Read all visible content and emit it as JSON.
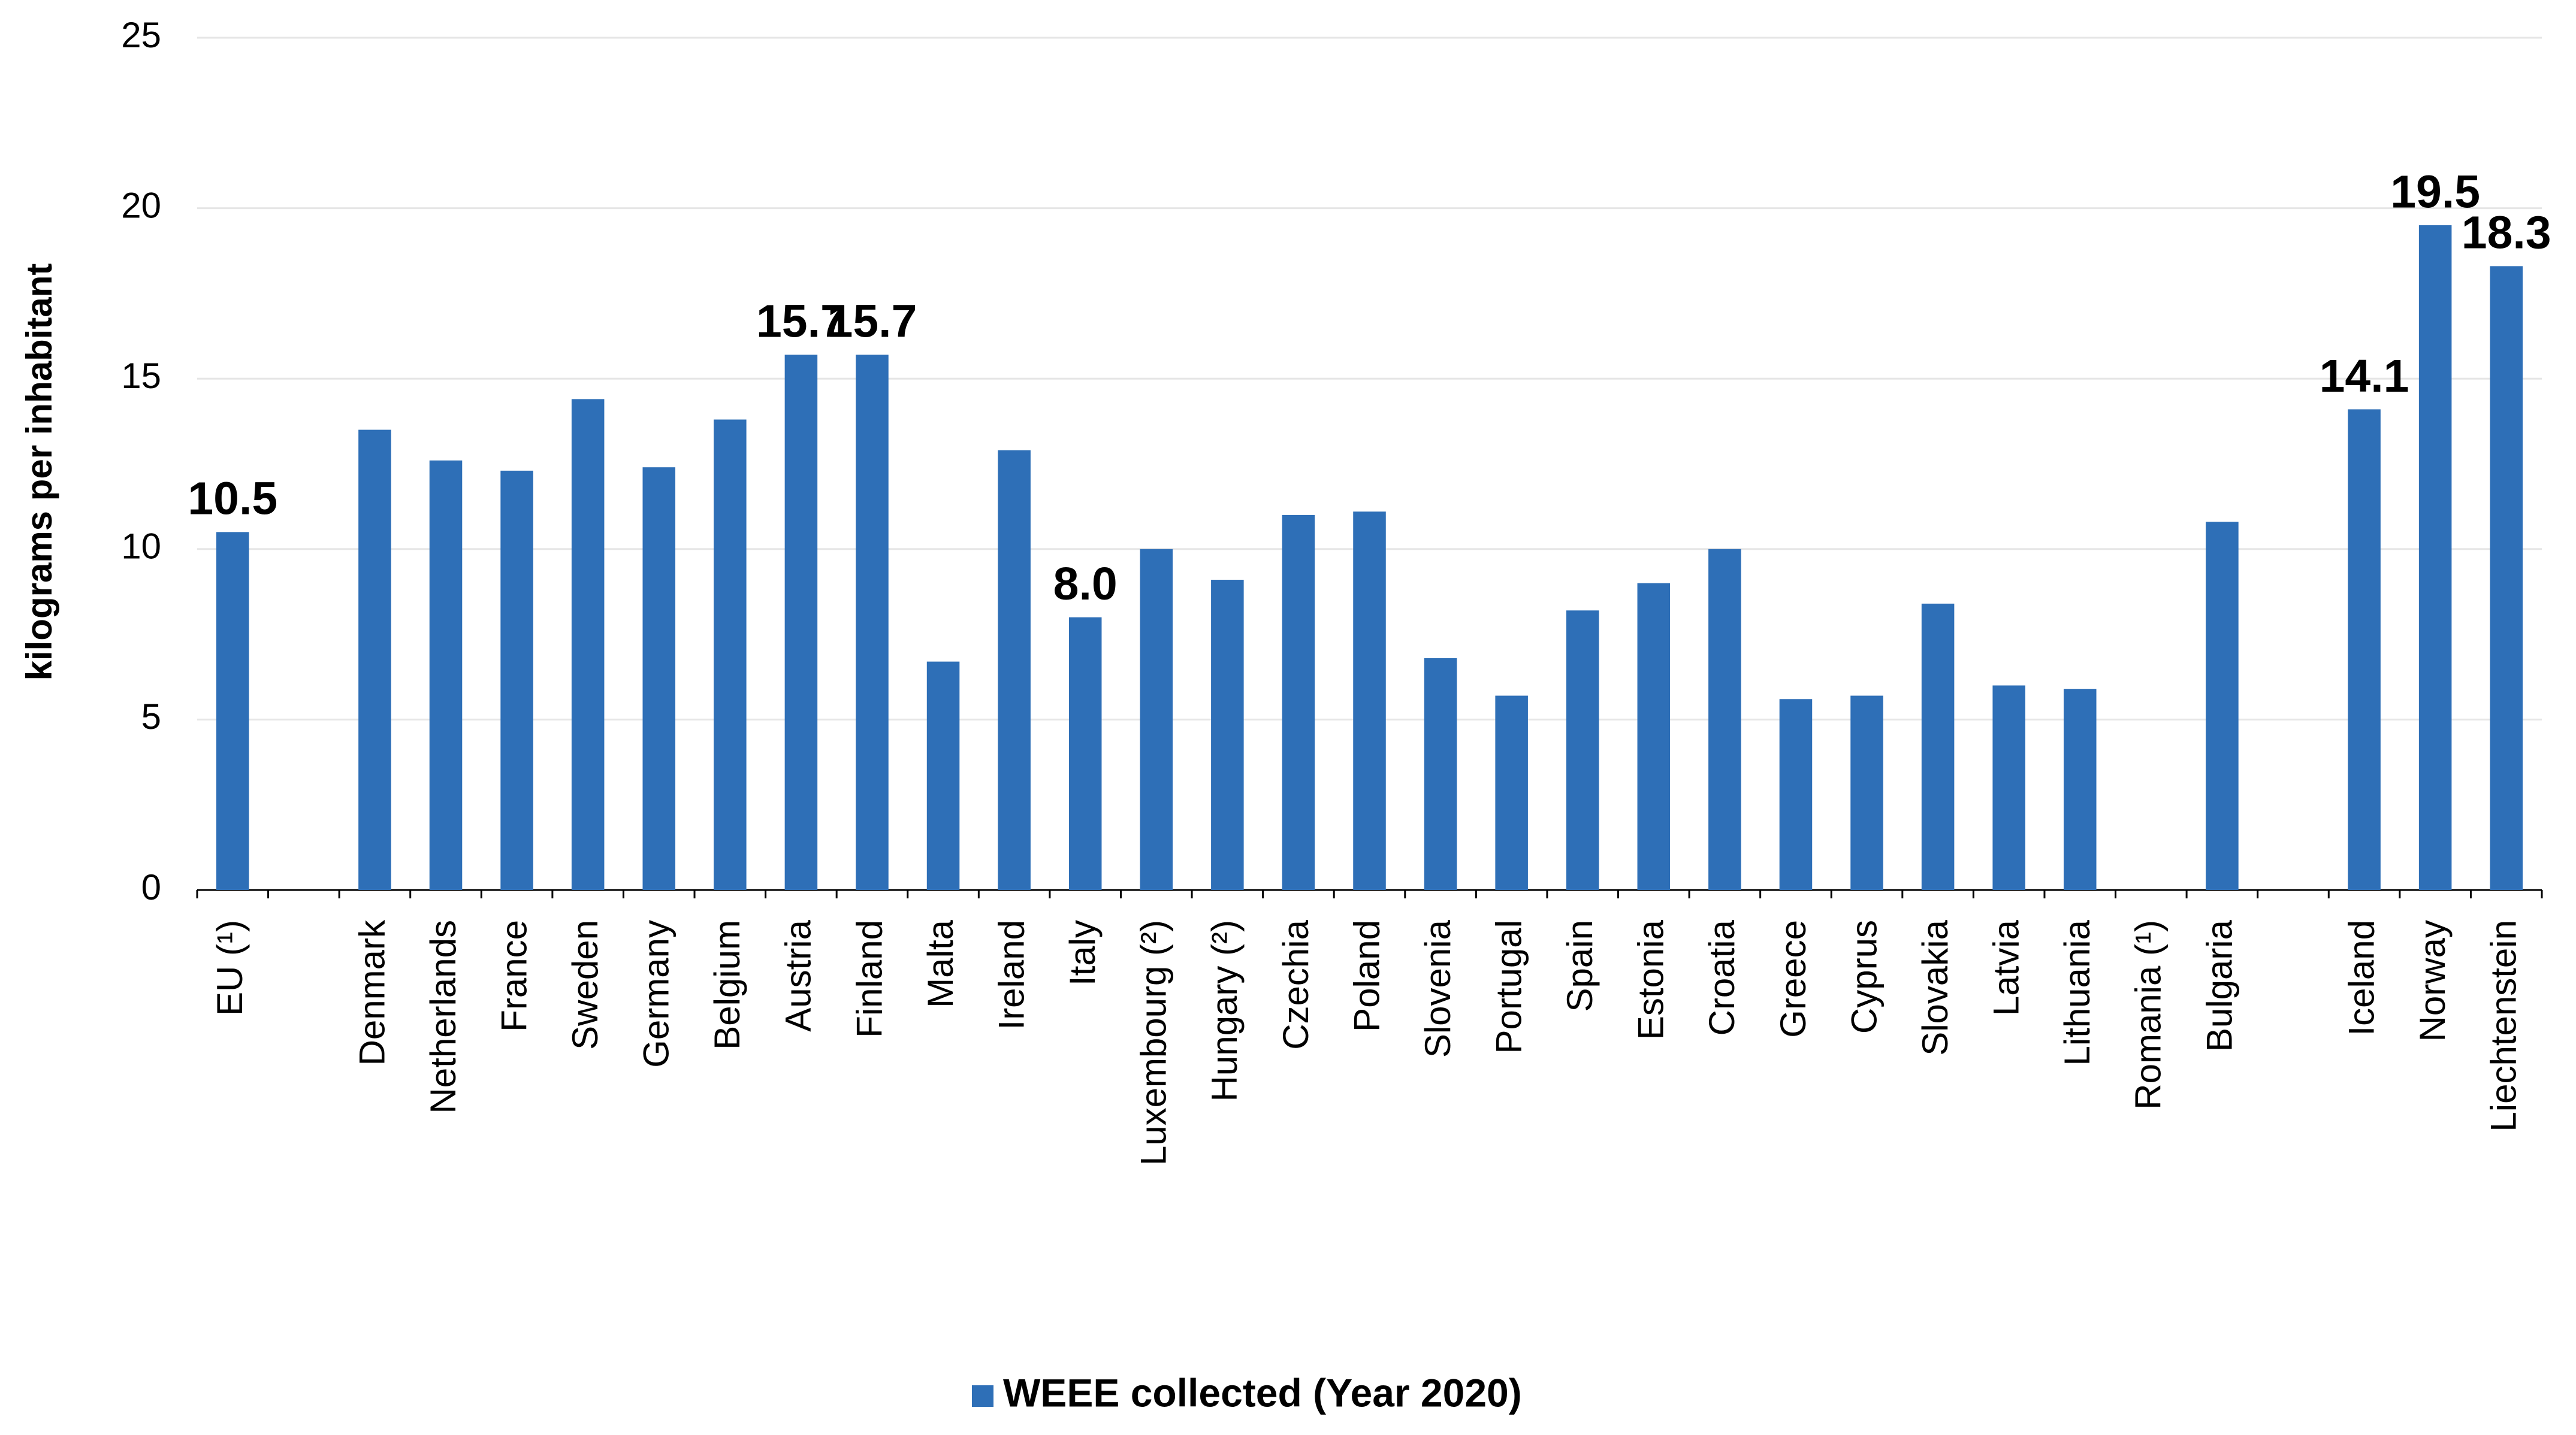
{
  "chart_data": {
    "type": "bar",
    "y_axis_label": "kilograms per inhabitant",
    "categories": [
      "EU (¹)",
      null,
      "Denmark",
      "Netherlands",
      "France",
      "Sweden",
      "Germany",
      "Belgium",
      "Austria",
      "Finland",
      "Malta",
      "Ireland",
      "Italy",
      "Luxembourg (²)",
      "Hungary (²)",
      "Czechia",
      "Poland",
      "Slovenia",
      "Portugal",
      "Spain",
      "Estonia",
      "Croatia",
      "Greece",
      "Cyprus",
      "Slovakia",
      "Latvia",
      "Lithuania",
      "Romania (¹)",
      "Bulgaria",
      null,
      "Iceland",
      "Norway",
      "Liechtenstein"
    ],
    "series": [
      {
        "name": "WEEE collected (Year 2020)",
        "color": "#2e6fb7",
        "values": [
          10.5,
          null,
          13.5,
          12.6,
          12.3,
          14.4,
          12.4,
          13.8,
          15.7,
          15.7,
          6.7,
          12.9,
          8.0,
          10.0,
          9.1,
          11.0,
          11.1,
          6.8,
          5.7,
          8.2,
          9.0,
          10.0,
          5.6,
          5.7,
          8.4,
          6.0,
          5.9,
          null,
          10.8,
          null,
          14.1,
          19.5,
          18.3
        ],
        "value_labels": [
          "10.5",
          null,
          null,
          null,
          null,
          null,
          null,
          null,
          "15.7",
          "15.7",
          null,
          null,
          "8.0",
          null,
          null,
          null,
          null,
          null,
          null,
          null,
          null,
          null,
          null,
          null,
          null,
          null,
          null,
          null,
          null,
          null,
          "14.1",
          "19.5",
          "18.3"
        ]
      }
    ],
    "ylim": [
      0,
      25
    ],
    "yticks": [
      0,
      5,
      10,
      15,
      20,
      25
    ],
    "grid": true,
    "legend": "bottom"
  }
}
